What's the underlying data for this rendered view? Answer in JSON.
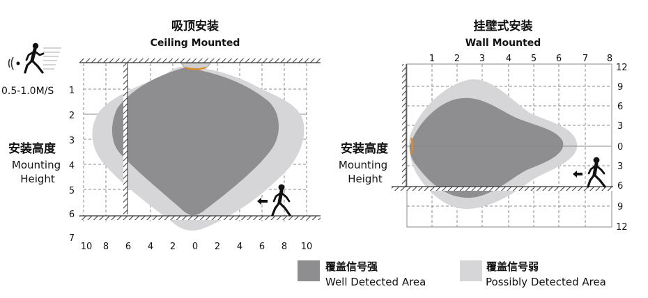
{
  "colors": {
    "well": "#8e8e90",
    "possible": "#d6d6d8",
    "accent": "#e58a1f",
    "ink": "#111111",
    "grid": "#888888"
  },
  "ceiling": {
    "title_cn": "吸顶安装",
    "title_en": "Ceiling Mounted",
    "speed": "0.5-1.0M/S",
    "mh_cn": "安装高度",
    "mh_en1": "Mounting",
    "mh_en2": "Height",
    "y_ticks": [
      "1",
      "2",
      "3",
      "4",
      "5",
      "6",
      "7"
    ],
    "x_ticks": [
      "10",
      "8",
      "6",
      "4",
      "2",
      "0",
      "2",
      "4",
      "6",
      "8",
      "10"
    ],
    "icons": [
      "motion-speed-icon",
      "walking-person-icon",
      "arrow-left-icon"
    ]
  },
  "wall": {
    "title_cn": "挂壁式安装",
    "title_en": "Wall Mounted",
    "mh_cn": "安装高度",
    "mh_en1": "Mounting",
    "mh_en2": "Height",
    "x_ticks": [
      "1",
      "2",
      "3",
      "4",
      "5",
      "6",
      "7",
      "8"
    ],
    "y_ticks": [
      "12",
      "9",
      "6",
      "3",
      "0",
      "3",
      "6",
      "9",
      "12"
    ],
    "icons": [
      "walking-person-icon",
      "arrow-left-icon"
    ]
  },
  "legend": {
    "well_cn": "覆盖信号强",
    "well_en": "Well Detected Area",
    "possible_cn": "覆盖信号弱",
    "possible_en": "Possibly Detected Area"
  }
}
